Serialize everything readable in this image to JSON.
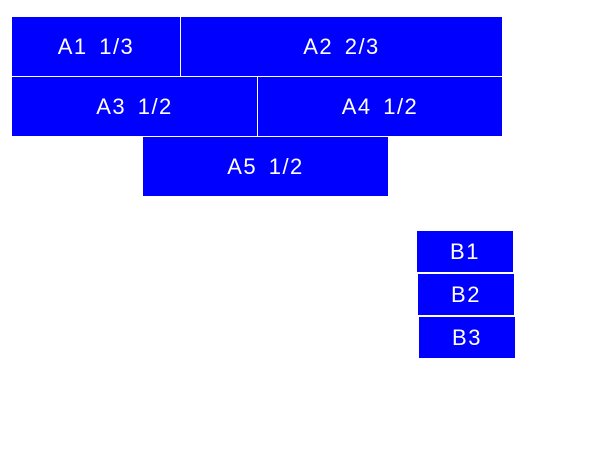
{
  "colors": {
    "box": "#0000ff",
    "text": "#ffffff",
    "background": "#ffffff"
  },
  "group_a": [
    {
      "label": "A1 1/3"
    },
    {
      "label": "A2 2/3"
    },
    {
      "label": "A3 1/2"
    },
    {
      "label": "A4 1/2"
    },
    {
      "label": "A5 1/2"
    }
  ],
  "group_b": [
    {
      "label": "B1"
    },
    {
      "label": "B2"
    },
    {
      "label": "B3"
    }
  ]
}
